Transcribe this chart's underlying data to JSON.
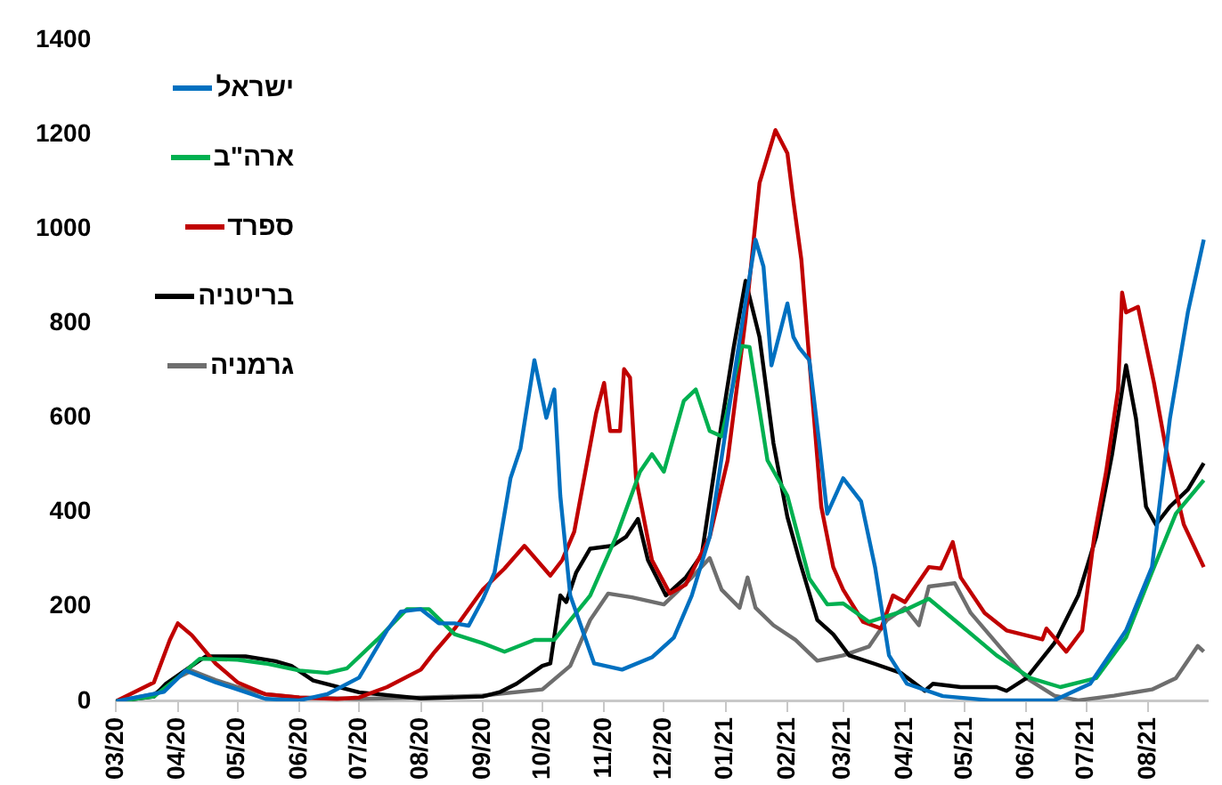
{
  "chart_data": {
    "type": "line",
    "legend": "top left",
    "grid": false,
    "marker": "none",
    "line_style": "solid",
    "xlim": [
      "2020-03-01",
      "2021-08-31"
    ],
    "xticks": [
      {
        "value": "2020-03-01",
        "label": "03/20"
      },
      {
        "value": "2020-04-01",
        "label": "04/20"
      },
      {
        "value": "2020-05-01",
        "label": "05/20"
      },
      {
        "value": "2020-06-01",
        "label": "06/20"
      },
      {
        "value": "2020-07-01",
        "label": "07/20"
      },
      {
        "value": "2020-08-01",
        "label": "08/20"
      },
      {
        "value": "2020-09-01",
        "label": "09/20"
      },
      {
        "value": "2020-10-01",
        "label": "10/20"
      },
      {
        "value": "2020-11-01",
        "label": "11/20"
      },
      {
        "value": "2020-12-01",
        "label": "12/20"
      },
      {
        "value": "2021-01-01",
        "label": "01/21"
      },
      {
        "value": "2021-02-01",
        "label": "02/21"
      },
      {
        "value": "2021-03-01",
        "label": "03/21"
      },
      {
        "value": "2021-04-01",
        "label": "04/21"
      },
      {
        "value": "2021-05-01",
        "label": "05/21"
      },
      {
        "value": "2021-06-01",
        "label": "06/21"
      },
      {
        "value": "2021-07-01",
        "label": "07/21"
      },
      {
        "value": "2021-08-01",
        "label": "08/21"
      }
    ],
    "ylim": [
      0,
      1400
    ],
    "yticks": [
      0,
      200,
      400,
      600,
      800,
      1000,
      1200,
      1400
    ],
    "series": [
      {
        "name": "ישראל",
        "color": "#0070c0",
        "x": [
          "2020-03-01",
          "2020-03-25",
          "2020-04-05",
          "2020-04-20",
          "2020-05-01",
          "2020-05-15",
          "2020-06-01",
          "2020-06-15",
          "2020-07-01",
          "2020-07-15",
          "2020-07-22",
          "2020-08-01",
          "2020-08-10",
          "2020-08-18",
          "2020-08-25",
          "2020-09-01",
          "2020-09-07",
          "2020-09-15",
          "2020-09-20",
          "2020-09-27",
          "2020-10-03",
          "2020-10-07",
          "2020-10-10",
          "2020-10-15",
          "2020-10-27",
          "2020-11-10",
          "2020-11-25",
          "2020-12-06",
          "2020-12-15",
          "2020-12-24",
          "2021-01-02",
          "2021-01-11",
          "2021-01-16",
          "2021-01-20",
          "2021-01-24",
          "2021-02-01",
          "2021-02-04",
          "2021-02-07",
          "2021-02-12",
          "2021-02-17",
          "2021-02-21",
          "2021-03-01",
          "2021-03-10",
          "2021-03-17",
          "2021-03-24",
          "2021-04-02",
          "2021-04-20",
          "2021-05-14",
          "2021-06-15",
          "2021-07-03",
          "2021-07-21",
          "2021-08-03",
          "2021-08-12",
          "2021-08-21",
          "2021-08-29"
        ],
        "values": [
          0,
          20,
          65,
          40,
          25,
          5,
          2,
          15,
          50,
          150,
          190,
          195,
          165,
          165,
          160,
          215,
          273,
          472,
          535,
          722,
          600,
          660,
          435,
          224,
          80,
          67,
          93,
          135,
          224,
          348,
          600,
          846,
          977,
          920,
          711,
          842,
          771,
          748,
          722,
          546,
          397,
          472,
          423,
          284,
          97,
          37,
          11,
          2,
          2,
          37,
          150,
          284,
          598,
          823,
          977
        ]
      },
      {
        "name": "ארה\"ב",
        "color": "#00b050",
        "x": [
          "2020-03-01",
          "2020-03-20",
          "2020-04-01",
          "2020-04-12",
          "2020-05-01",
          "2020-05-15",
          "2020-06-01",
          "2020-06-15",
          "2020-06-25",
          "2020-07-10",
          "2020-07-25",
          "2020-08-05",
          "2020-08-18",
          "2020-09-01",
          "2020-09-12",
          "2020-09-27",
          "2020-10-07",
          "2020-10-25",
          "2020-11-07",
          "2020-11-19",
          "2020-11-25",
          "2020-12-01",
          "2020-12-11",
          "2020-12-17",
          "2020-12-24",
          "2020-12-30",
          "2021-01-09",
          "2021-01-13",
          "2021-01-22",
          "2021-02-01",
          "2021-02-12",
          "2021-02-21",
          "2021-03-01",
          "2021-03-14",
          "2021-03-31",
          "2021-04-13",
          "2021-04-29",
          "2021-05-17",
          "2021-06-03",
          "2021-06-18",
          "2021-07-06",
          "2021-07-21",
          "2021-08-03",
          "2021-08-15",
          "2021-08-29"
        ],
        "values": [
          0,
          10,
          50,
          90,
          88,
          80,
          65,
          60,
          70,
          130,
          195,
          195,
          142,
          123,
          105,
          130,
          130,
          224,
          348,
          486,
          523,
          486,
          636,
          660,
          572,
          561,
          752,
          750,
          510,
          435,
          260,
          205,
          207,
          168,
          191,
          217,
          161,
          97,
          49,
          30,
          49,
          135,
          273,
          397,
          468
        ]
      },
      {
        "name": "ספרד",
        "color": "#c00000",
        "x": [
          "2020-03-01",
          "2020-03-20",
          "2020-03-28",
          "2020-04-01",
          "2020-04-08",
          "2020-04-20",
          "2020-05-01",
          "2020-05-15",
          "2020-06-01",
          "2020-06-20",
          "2020-07-01",
          "2020-07-15",
          "2020-08-01",
          "2020-08-08",
          "2020-08-18",
          "2020-09-01",
          "2020-09-12",
          "2020-09-22",
          "2020-10-05",
          "2020-10-11",
          "2020-10-17",
          "2020-10-28",
          "2020-11-01",
          "2020-11-04",
          "2020-11-09",
          "2020-11-11",
          "2020-11-14",
          "2020-11-17",
          "2020-11-25",
          "2020-12-04",
          "2020-12-12",
          "2020-12-24",
          "2021-01-02",
          "2021-01-11",
          "2021-01-18",
          "2021-01-26",
          "2021-02-01",
          "2021-02-04",
          "2021-02-08",
          "2021-02-12",
          "2021-02-18",
          "2021-02-24",
          "2021-03-01",
          "2021-03-11",
          "2021-03-20",
          "2021-03-26",
          "2021-04-01",
          "2021-04-13",
          "2021-04-19",
          "2021-04-25",
          "2021-04-29",
          "2021-05-11",
          "2021-05-22",
          "2021-06-09",
          "2021-06-11",
          "2021-06-21",
          "2021-06-29",
          "2021-07-05",
          "2021-07-11",
          "2021-07-17",
          "2021-07-19",
          "2021-07-21",
          "2021-07-27",
          "2021-08-04",
          "2021-08-10",
          "2021-08-19",
          "2021-08-29"
        ],
        "values": [
          0,
          40,
          130,
          165,
          140,
          80,
          40,
          15,
          8,
          5,
          8,
          30,
          67,
          105,
          154,
          236,
          281,
          329,
          266,
          299,
          359,
          610,
          674,
          572,
          572,
          703,
          685,
          472,
          299,
          228,
          247,
          348,
          510,
          809,
          1097,
          1209,
          1160,
          1059,
          935,
          722,
          412,
          284,
          236,
          168,
          154,
          224,
          210,
          284,
          281,
          337,
          262,
          187,
          150,
          131,
          154,
          105,
          150,
          348,
          486,
          660,
          865,
          823,
          835,
          674,
          535,
          374,
          284
        ]
      },
      {
        "name": "בריטניה",
        "color": "#000000",
        "x": [
          "2020-03-01",
          "2020-03-20",
          "2020-03-26",
          "2020-04-08",
          "2020-04-15",
          "2020-05-05",
          "2020-05-20",
          "2020-05-28",
          "2020-06-08",
          "2020-07-01",
          "2020-08-01",
          "2020-09-01",
          "2020-09-10",
          "2020-09-18",
          "2020-10-01",
          "2020-10-05",
          "2020-10-10",
          "2020-10-13",
          "2020-10-18",
          "2020-10-25",
          "2020-11-05",
          "2020-11-12",
          "2020-11-18",
          "2020-11-23",
          "2020-12-02",
          "2020-12-12",
          "2020-12-20",
          "2020-12-28",
          "2021-01-05",
          "2021-01-11",
          "2021-01-18",
          "2021-01-25",
          "2021-02-01",
          "2021-02-07",
          "2021-02-16",
          "2021-02-24",
          "2021-03-04",
          "2021-03-17",
          "2021-03-30",
          "2021-04-11",
          "2021-04-15",
          "2021-04-29",
          "2021-05-17",
          "2021-05-22",
          "2021-06-01",
          "2021-06-15",
          "2021-06-27",
          "2021-07-06",
          "2021-07-14",
          "2021-07-21",
          "2021-07-26",
          "2021-07-31",
          "2021-08-05",
          "2021-08-12",
          "2021-08-21",
          "2021-08-29"
        ],
        "values": [
          0,
          10,
          37,
          75,
          95,
          95,
          85,
          75,
          44,
          19,
          6,
          10,
          20,
          37,
          75,
          80,
          224,
          210,
          273,
          323,
          329,
          348,
          386,
          299,
          224,
          262,
          310,
          535,
          748,
          890,
          771,
          546,
          390,
          299,
          172,
          142,
          97,
          79,
          60,
          22,
          37,
          30,
          30,
          22,
          49,
          123,
          224,
          348,
          523,
          711,
          598,
          412,
          374,
          412,
          448,
          504
        ]
      },
      {
        "name": "גרמניה",
        "color": "#6e6e6e",
        "x": [
          "2020-03-01",
          "2020-03-20",
          "2020-04-01",
          "2020-04-08",
          "2020-04-20",
          "2020-05-01",
          "2020-05-15",
          "2020-06-01",
          "2020-07-01",
          "2020-08-01",
          "2020-09-01",
          "2020-10-01",
          "2020-10-15",
          "2020-10-25",
          "2020-11-03",
          "2020-11-15",
          "2020-12-01",
          "2020-12-15",
          "2020-12-24",
          "2020-12-30",
          "2021-01-08",
          "2021-01-12",
          "2021-01-16",
          "2021-01-25",
          "2021-02-05",
          "2021-02-16",
          "2021-03-01",
          "2021-03-14",
          "2021-03-23",
          "2021-04-01",
          "2021-04-08",
          "2021-04-13",
          "2021-04-26",
          "2021-05-04",
          "2021-05-17",
          "2021-06-01",
          "2021-06-15",
          "2021-06-27",
          "2021-07-15",
          "2021-08-03",
          "2021-08-15",
          "2021-08-26",
          "2021-08-29"
        ],
        "values": [
          0,
          15,
          50,
          65,
          45,
          30,
          15,
          8,
          5,
          8,
          12,
          25,
          75,
          172,
          228,
          220,
          205,
          262,
          303,
          236,
          198,
          262,
          198,
          161,
          130,
          86,
          97,
          116,
          172,
          198,
          161,
          243,
          250,
          187,
          123,
          49,
          12,
          2,
          12,
          25,
          49,
          117,
          105
        ]
      }
    ]
  }
}
